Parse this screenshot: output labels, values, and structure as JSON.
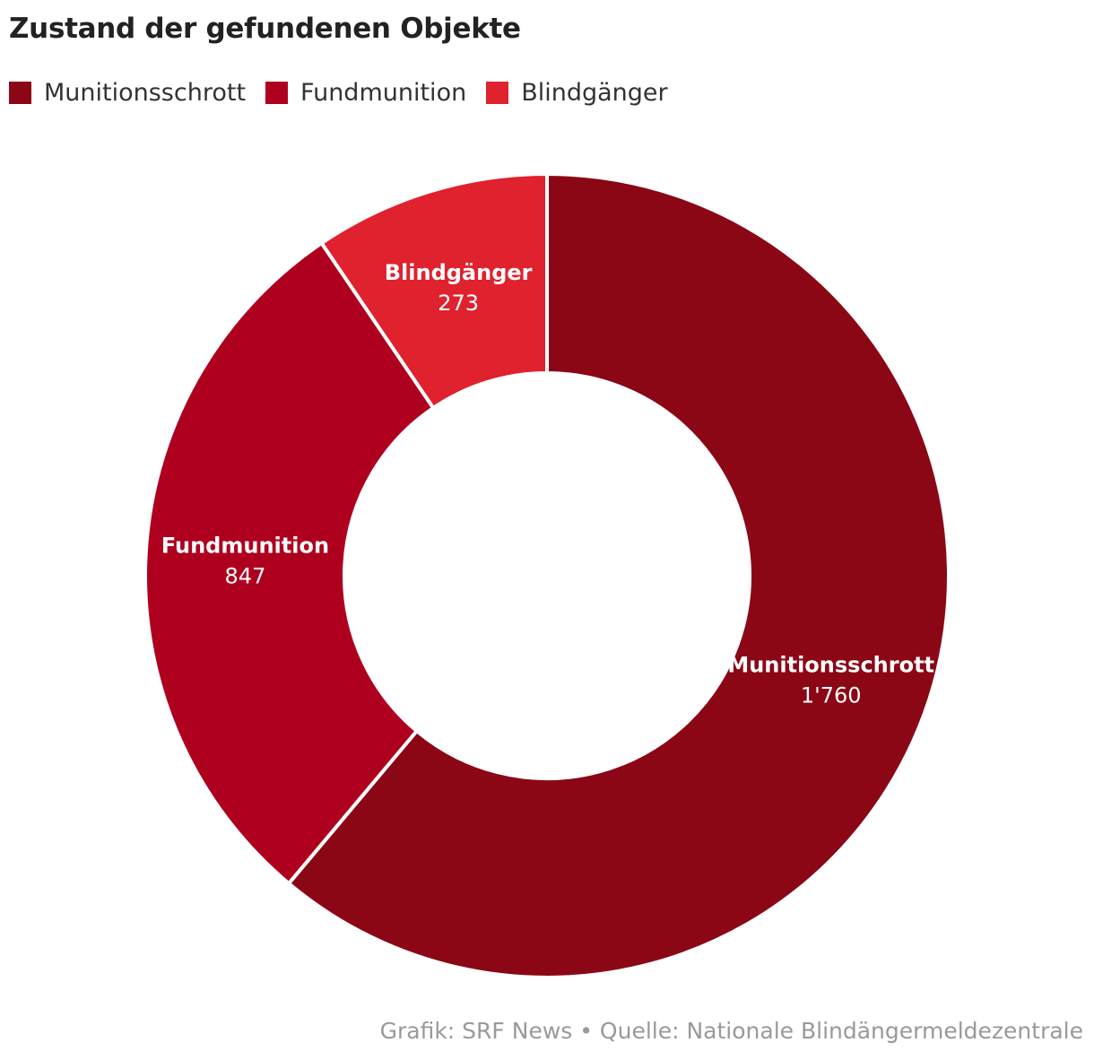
{
  "chart_data": {
    "type": "pie",
    "variant": "donut",
    "title": "Zustand der gefundenen Objekte",
    "categories": [
      "Munitionsschrott",
      "Fundmunition",
      "Blindgänger"
    ],
    "values": [
      1760,
      847,
      273
    ],
    "value_labels": [
      "1'760",
      "847",
      "273"
    ],
    "colors": [
      "#8B0716",
      "#AE001E",
      "#E0212E"
    ],
    "legend": "top-left",
    "start_angle_deg": 0,
    "direction": "clockwise"
  },
  "footer": {
    "credit": "Grafik: SRF News • Quelle: Nationale Blindängermeldezentrale"
  }
}
